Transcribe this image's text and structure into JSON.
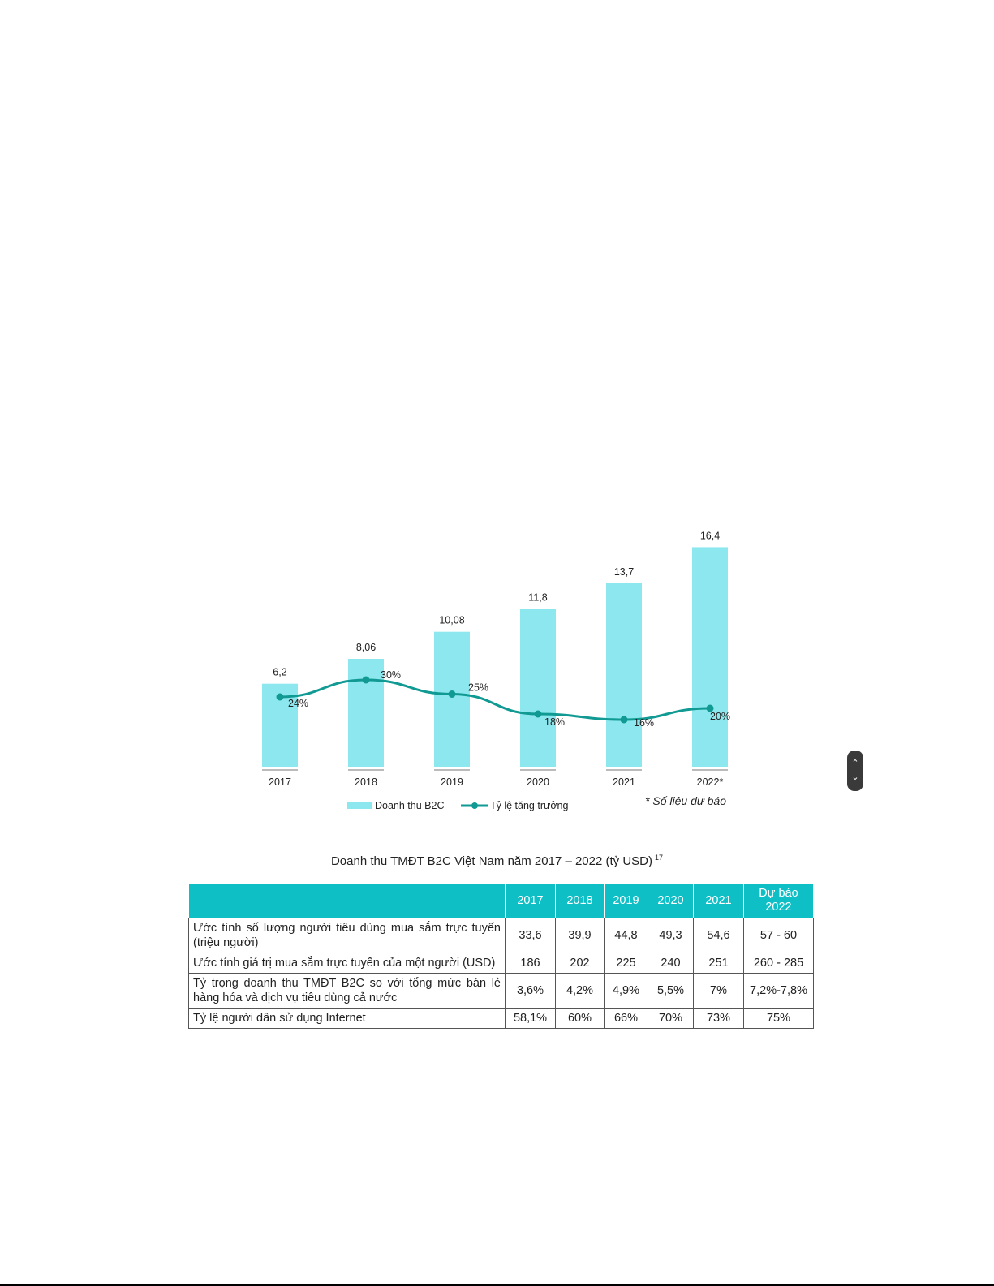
{
  "chart_data": {
    "type": "bar",
    "categories": [
      "2017",
      "2018",
      "2019",
      "2020",
      "2021",
      "2022*"
    ],
    "series": [
      {
        "name": "Doanh thu B2C",
        "type": "bar",
        "values": [
          6.2,
          8.06,
          10.08,
          11.8,
          13.7,
          16.4
        ],
        "labels": [
          "6,2",
          "8,06",
          "10,08",
          "11,8",
          "13,7",
          "16,4"
        ]
      },
      {
        "name": "Tỷ lệ tăng trưởng",
        "type": "line",
        "values": [
          24,
          30,
          25,
          18,
          16,
          20
        ],
        "labels": [
          "24%",
          "30%",
          "25%",
          "18%",
          "16%",
          "20%"
        ]
      }
    ],
    "colors": {
      "bar": "#8ce8ee",
      "line": "#119a93"
    },
    "legend_position": "bottom-left",
    "note": "* Số liệu dự báo",
    "caption": "Doanh thu TMĐT B2C Việt Nam năm 2017 – 2022 (tỷ USD)",
    "caption_footnote": "17"
  },
  "table": {
    "headers": [
      "",
      "2017",
      "2018",
      "2019",
      "2020",
      "2021",
      "Dự báo 2022"
    ],
    "rows": [
      [
        "Ước tính số lượng người tiêu dùng mua sắm trực tuyến (triệu người)",
        "33,6",
        "39,9",
        "44,8",
        "49,3",
        "54,6",
        "57 - 60"
      ],
      [
        "Ước tính giá trị mua sắm trực tuyến của một người (USD)",
        "186",
        "202",
        "225",
        "240",
        "251",
        "260 - 285"
      ],
      [
        "Tỷ trọng doanh thu TMĐT B2C so với tổng mức bán lẻ hàng hóa và dịch vụ tiêu dùng cả nước",
        "3,6%",
        "4,2%",
        "4,9%",
        "5,5%",
        "7%",
        "7,2%-7,8%"
      ],
      [
        "Tỷ lệ người dân sử dụng Internet",
        "58,1%",
        "60%",
        "66%",
        "70%",
        "73%",
        "75%"
      ]
    ]
  },
  "scroll_control": {
    "up_icon": "chevron-up-icon",
    "down_icon": "chevron-down-icon"
  }
}
